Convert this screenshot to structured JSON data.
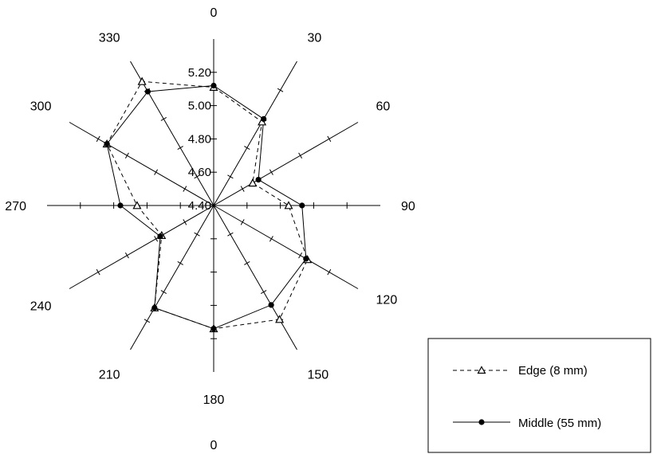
{
  "chart_data": {
    "type": "radar",
    "angles": [
      0,
      30,
      60,
      90,
      120,
      150,
      180,
      210,
      240,
      270,
      300,
      330
    ],
    "angle_labels": [
      "0",
      "30",
      "60",
      "90",
      "120",
      "150",
      "180",
      "210",
      "240",
      "270",
      "300",
      "330"
    ],
    "extra_angle_label": "0",
    "rlim": [
      4.4,
      5.4
    ],
    "r_tick_values": [
      4.4,
      4.6,
      4.8,
      5.0,
      5.2
    ],
    "r_tick_labels": [
      "4.40",
      "4.60",
      "4.80",
      "5.00",
      "5.20"
    ],
    "legend_position": "bottom-right",
    "series": [
      {
        "name": "Edge (8 mm)",
        "marker": "triangle",
        "line_style": "dashed",
        "values": [
          5.11,
          4.98,
          4.67,
          4.85,
          5.05,
          5.19,
          5.14,
          5.11,
          4.76,
          4.86,
          5.14,
          5.26
        ]
      },
      {
        "name": "Middle (55 mm)",
        "marker": "circle",
        "line_style": "solid",
        "values": [
          5.12,
          5.0,
          4.71,
          4.93,
          5.04,
          5.09,
          5.14,
          5.11,
          4.77,
          4.96,
          5.14,
          5.19
        ]
      }
    ]
  }
}
